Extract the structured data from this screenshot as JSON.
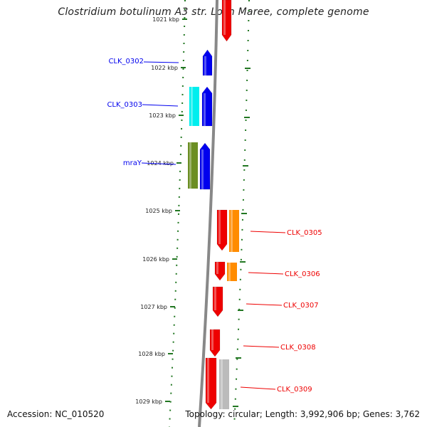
{
  "title": "Clostridium botulinum A3 str. Loch Maree, complete genome",
  "footer": {
    "accession": "Accession: NC_010520",
    "summary": "Topology: circular; Length: 3,992,906 bp; Genes: 3,762"
  },
  "colors": {
    "forward": "#0000ee",
    "reverse": "#ee0000",
    "backbone": "#888888",
    "ticks": "#227722"
  },
  "ticks": [
    {
      "label": "1021 kbp"
    },
    {
      "label": "1022 kbp"
    },
    {
      "label": "1023 kbp"
    },
    {
      "label": "1024 kbp"
    },
    {
      "label": "1025 kbp"
    },
    {
      "label": "1026 kbp"
    },
    {
      "label": "1027 kbp"
    },
    {
      "label": "1028 kbp"
    },
    {
      "label": "1029 kbp"
    }
  ],
  "genes": [
    {
      "name": "CLK_0302",
      "strand": "forward"
    },
    {
      "name": "CLK_0303",
      "strand": "forward"
    },
    {
      "name": "mraY",
      "strand": "forward"
    },
    {
      "name": "CLK_0305",
      "strand": "reverse"
    },
    {
      "name": "CLK_0306",
      "strand": "reverse"
    },
    {
      "name": "CLK_0307",
      "strand": "reverse"
    },
    {
      "name": "CLK_0308",
      "strand": "reverse"
    },
    {
      "name": "CLK_0309",
      "strand": "reverse"
    }
  ]
}
